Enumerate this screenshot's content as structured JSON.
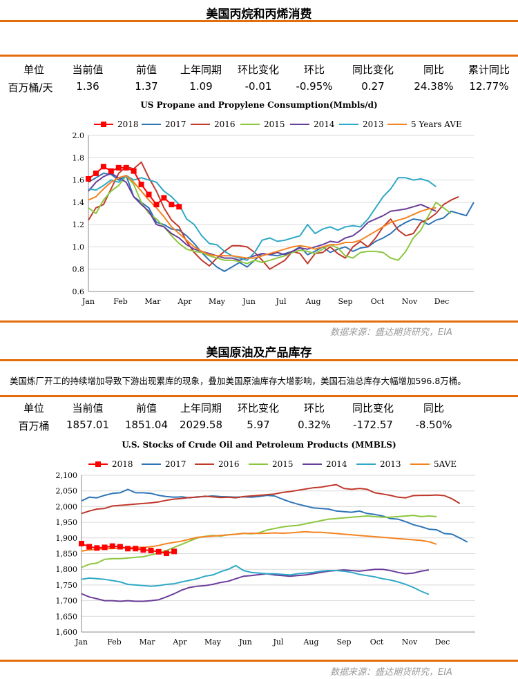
{
  "section1": {
    "title": "美国丙烷和丙烯消费",
    "headers": [
      "单位",
      "当前值",
      "前值",
      "上年同期",
      "环比变化",
      "环比",
      "同比变化",
      "同比",
      "累计同比"
    ],
    "values": [
      "百万桶/天",
      "1.36",
      "1.37",
      "1.09",
      "-0.01",
      "-0.95%",
      "0.27",
      "24.38%",
      "12.77%"
    ]
  },
  "source1": "数据来源：盛达期货研究，EIA",
  "section2": {
    "title": "美国原油及产品库存",
    "description": "美国炼厂开工的持续增加导致下游出现累库的现象，叠加美国原油库存大增影响，美国石油总库存大幅增加596.8万桶。",
    "headers": [
      "单位",
      "当前值",
      "前值",
      "上年同期",
      "环比变化",
      "环比",
      "同比变化",
      "同比"
    ],
    "values": [
      "百万桶",
      "1857.01",
      "1851.04",
      "2029.58",
      "5.97",
      "0.32%",
      "-172.57",
      "-8.50%"
    ]
  },
  "source2": "数据来源：盛达期货研究，EIA",
  "colors": {
    "2018": "#ff0000",
    "2017": "#2e75b6",
    "2016": "#c0392b",
    "2015": "#8cc63f",
    "2014": "#6a3d9a",
    "2013": "#2ea8c7",
    "ave": "#f58220",
    "rule": "#e46c0a"
  },
  "chart_data": [
    {
      "type": "line",
      "title": "US Propane and Propylene Consumption(Mmbls/d)",
      "x_ticks": [
        "Jan",
        "Feb",
        "Mar",
        "Apr",
        "May",
        "Jun",
        "Jul",
        "Aug",
        "Sep",
        "Oct",
        "Nov",
        "Dec"
      ],
      "y_ticks": [
        "0.6",
        "0.8",
        "1.0",
        "1.2",
        "1.4",
        "1.6",
        "1.8",
        "2.0"
      ],
      "ylim": [
        0.6,
        2.0
      ],
      "grid": true,
      "legend_position": "top",
      "series": [
        {
          "name": "2018",
          "marker": "square",
          "values": [
            1.61,
            1.66,
            1.72,
            1.68,
            1.71,
            1.71,
            1.68,
            1.56,
            1.47,
            1.38,
            1.44,
            1.38,
            1.36
          ]
        },
        {
          "name": "2017",
          "values": [
            1.58,
            1.62,
            1.66,
            1.65,
            1.6,
            1.64,
            1.45,
            1.4,
            1.35,
            1.22,
            1.2,
            1.16,
            1.15,
            1.1,
            1.03,
            0.95,
            0.88,
            0.82,
            0.78,
            0.82,
            0.86,
            0.82,
            0.88,
            0.94,
            0.93,
            0.92,
            0.94,
            0.96,
            1.0,
            0.93,
            0.96,
            1.0,
            0.95,
            0.98,
            1.0,
            0.96,
            0.99,
            1.0,
            1.05,
            1.08,
            1.12,
            1.18,
            1.22,
            1.25,
            1.24,
            1.2,
            1.24,
            1.26,
            1.32,
            1.3,
            1.28,
            1.4
          ]
        },
        {
          "name": "2016",
          "values": [
            1.24,
            1.35,
            1.38,
            1.52,
            1.66,
            1.72,
            1.7,
            1.76,
            1.62,
            1.5,
            1.35,
            1.24,
            1.18,
            1.05,
            0.95,
            0.88,
            0.83,
            0.9,
            0.96,
            1.01,
            1.01,
            1.0,
            0.95,
            0.88,
            0.8,
            0.84,
            0.88,
            0.96,
            0.94,
            0.85,
            0.94,
            0.95,
            1.0,
            0.94,
            0.9,
            1.0,
            1.05,
            1.0,
            1.08,
            1.18,
            1.25,
            1.15,
            1.1,
            1.12,
            1.22,
            1.25,
            1.3,
            1.38,
            1.42,
            1.45
          ]
        },
        {
          "name": "2015",
          "values": [
            1.35,
            1.3,
            1.42,
            1.5,
            1.55,
            1.64,
            1.56,
            1.4,
            1.3,
            1.25,
            1.18,
            1.1,
            1.03,
            0.98,
            0.96,
            0.95,
            0.92,
            0.9,
            0.88,
            0.88,
            0.87,
            0.85,
            0.88,
            0.86,
            0.88,
            0.9,
            0.92,
            0.95,
            0.97,
            0.96,
            0.94,
            0.98,
            1.02,
            0.99,
            0.92,
            0.9,
            0.95,
            0.96,
            0.96,
            0.95,
            0.9,
            0.88,
            0.96,
            1.08,
            1.15,
            1.28,
            1.4,
            1.35,
            1.3
          ]
        },
        {
          "name": "2014",
          "values": [
            1.5,
            1.58,
            1.63,
            1.66,
            1.62,
            1.58,
            1.45,
            1.38,
            1.32,
            1.2,
            1.18,
            1.12,
            1.08,
            1.02,
            0.98,
            0.96,
            0.94,
            0.92,
            0.9,
            0.9,
            0.88,
            0.9,
            0.92,
            0.94,
            0.93,
            0.95,
            0.93,
            0.96,
            0.99,
            0.98,
            1.0,
            1.02,
            1.05,
            1.04,
            1.08,
            1.1,
            1.15,
            1.22,
            1.25,
            1.28,
            1.32,
            1.33,
            1.34,
            1.36,
            1.38,
            1.35,
            1.32
          ]
        },
        {
          "name": "2013",
          "values": [
            1.52,
            1.51,
            1.55,
            1.6,
            1.58,
            1.64,
            1.6,
            1.62,
            1.6,
            1.58,
            1.5,
            1.45,
            1.38,
            1.25,
            1.2,
            1.1,
            1.03,
            1.02,
            0.96,
            0.92,
            0.9,
            0.88,
            0.95,
            1.06,
            1.08,
            1.05,
            1.06,
            1.08,
            1.1,
            1.2,
            1.12,
            1.16,
            1.18,
            1.15,
            1.18,
            1.19,
            1.18,
            1.25,
            1.35,
            1.45,
            1.52,
            1.62,
            1.62,
            1.6,
            1.61,
            1.59,
            1.54
          ]
        },
        {
          "name": "5 Years AVE",
          "values": [
            1.42,
            1.45,
            1.52,
            1.58,
            1.62,
            1.64,
            1.58,
            1.5,
            1.42,
            1.35,
            1.27,
            1.18,
            1.12,
            1.06,
            1.0,
            0.96,
            0.93,
            0.92,
            0.92,
            0.92,
            0.91,
            0.9,
            0.9,
            0.92,
            0.94,
            0.96,
            0.98,
            1.0,
            1.01,
            1.0,
            0.98,
            1.0,
            1.02,
            1.02,
            1.04,
            1.04,
            1.06,
            1.1,
            1.14,
            1.18,
            1.22,
            1.24,
            1.26,
            1.29,
            1.32,
            1.34,
            1.35
          ]
        }
      ]
    },
    {
      "type": "line",
      "title": "U.S.  Stocks of Crude Oil and Petroleum Products  (MMBLS)",
      "x_ticks": [
        "Jan",
        "Feb",
        "Mar",
        "Apr",
        "May",
        "Jun",
        "Jul",
        "Aug",
        "Sep",
        "Oct",
        "Nov",
        "Dec"
      ],
      "y_ticks": [
        "1,600",
        "1,650",
        "1,700",
        "1,750",
        "1,800",
        "1,850",
        "1,900",
        "1,950",
        "2,000",
        "2,050",
        "2,100"
      ],
      "ylim": [
        1600,
        2100
      ],
      "grid": true,
      "legend_position": "top",
      "series": [
        {
          "name": "2018",
          "marker": "square",
          "values": [
            1882,
            1872,
            1868,
            1870,
            1874,
            1872,
            1866,
            1866,
            1862,
            1860,
            1856,
            1851,
            1857
          ]
        },
        {
          "name": "2017",
          "values": [
            2018,
            2030,
            2028,
            2036,
            2042,
            2044,
            2055,
            2044,
            2044,
            2042,
            2036,
            2032,
            2030,
            2031,
            2028,
            2031,
            2032,
            2034,
            2032,
            2031,
            2030,
            2031,
            2030,
            2032,
            2036,
            2034,
            2024,
            2015,
            2008,
            2002,
            1996,
            1994,
            1992,
            1986,
            1984,
            1982,
            1986,
            1978,
            1975,
            1970,
            1962,
            1960,
            1952,
            1942,
            1936,
            1928,
            1926,
            1914,
            1912,
            1900,
            1887
          ]
        },
        {
          "name": "2016",
          "values": [
            1978,
            1986,
            1992,
            1994,
            2002,
            2004,
            2006,
            2008,
            2010,
            2012,
            2015,
            2020,
            2024,
            2026,
            2029,
            2030,
            2033,
            2031,
            2029,
            2030,
            2028,
            2032,
            2034,
            2036,
            2038,
            2040,
            2045,
            2048,
            2052,
            2056,
            2060,
            2062,
            2066,
            2070,
            2058,
            2055,
            2058,
            2055,
            2044,
            2040,
            2036,
            2030,
            2028,
            2035,
            2036,
            2036,
            2037,
            2035,
            2025,
            2010
          ]
        },
        {
          "name": "2015",
          "values": [
            1806,
            1816,
            1820,
            1832,
            1834,
            1834,
            1836,
            1838,
            1840,
            1846,
            1852,
            1860,
            1870,
            1880,
            1890,
            1900,
            1905,
            1908,
            1906,
            1910,
            1912,
            1915,
            1913,
            1916,
            1925,
            1930,
            1935,
            1938,
            1940,
            1945,
            1950,
            1955,
            1960,
            1962,
            1964,
            1966,
            1968,
            1970,
            1968,
            1966,
            1966,
            1968,
            1970,
            1972,
            1968,
            1970,
            1968
          ]
        },
        {
          "name": "2014",
          "values": [
            1722,
            1712,
            1706,
            1700,
            1700,
            1698,
            1700,
            1698,
            1698,
            1700,
            1703,
            1712,
            1722,
            1734,
            1742,
            1746,
            1748,
            1752,
            1758,
            1762,
            1770,
            1778,
            1780,
            1783,
            1786,
            1782,
            1780,
            1778,
            1780,
            1782,
            1786,
            1790,
            1794,
            1796,
            1798,
            1796,
            1794,
            1797,
            1800,
            1800,
            1796,
            1790,
            1786,
            1788,
            1794,
            1798
          ]
        },
        {
          "name": "2013",
          "values": [
            1768,
            1772,
            1770,
            1768,
            1764,
            1760,
            1752,
            1750,
            1748,
            1746,
            1748,
            1752,
            1754,
            1760,
            1765,
            1770,
            1778,
            1782,
            1792,
            1800,
            1812,
            1796,
            1790,
            1788,
            1786,
            1786,
            1784,
            1782,
            1786,
            1788,
            1790,
            1794,
            1796,
            1796,
            1794,
            1790,
            1784,
            1780,
            1776,
            1770,
            1766,
            1760,
            1752,
            1742,
            1730,
            1720
          ]
        },
        {
          "name": "5AVE",
          "values": [
            1858,
            1862,
            1864,
            1866,
            1866,
            1868,
            1868,
            1870,
            1870,
            1872,
            1876,
            1882,
            1886,
            1890,
            1896,
            1902,
            1904,
            1906,
            1908,
            1910,
            1912,
            1914,
            1915,
            1914,
            1915,
            1916,
            1915,
            1916,
            1918,
            1920,
            1918,
            1918,
            1916,
            1914,
            1912,
            1910,
            1908,
            1906,
            1904,
            1902,
            1900,
            1898,
            1896,
            1894,
            1892,
            1888,
            1880
          ]
        }
      ]
    }
  ]
}
